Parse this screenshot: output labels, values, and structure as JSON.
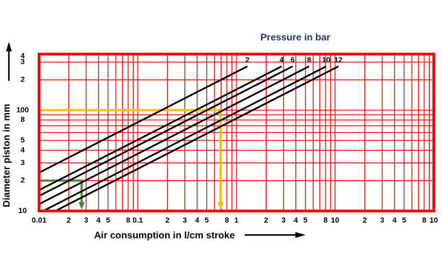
{
  "title": "Pressure in bar",
  "x_axis": {
    "label": "Air consumption in l/cm stroke",
    "scale": "log",
    "min": 0.01,
    "max": 100,
    "ticks": [
      {
        "v": 0.01,
        "t": "0.01"
      },
      {
        "v": 0.02,
        "t": "2"
      },
      {
        "v": 0.03,
        "t": "3"
      },
      {
        "v": 0.04,
        "t": "4"
      },
      {
        "v": 0.05,
        "t": "5"
      },
      {
        "v": 0.08,
        "t": "8"
      },
      {
        "v": 0.1,
        "t": "0.1"
      },
      {
        "v": 0.2,
        "t": "2"
      },
      {
        "v": 0.3,
        "t": "3"
      },
      {
        "v": 0.4,
        "t": "4"
      },
      {
        "v": 0.5,
        "t": "5"
      },
      {
        "v": 0.8,
        "t": "8"
      },
      {
        "v": 1,
        "t": "1"
      },
      {
        "v": 2,
        "t": "2"
      },
      {
        "v": 3,
        "t": "3"
      },
      {
        "v": 4,
        "t": "4"
      },
      {
        "v": 5,
        "t": "5"
      },
      {
        "v": 8,
        "t": "8"
      },
      {
        "v": 10,
        "t": "10"
      },
      {
        "v": 20,
        "t": "2"
      },
      {
        "v": 30,
        "t": "3"
      },
      {
        "v": 40,
        "t": "4"
      },
      {
        "v": 50,
        "t": "5"
      },
      {
        "v": 80,
        "t": "8"
      },
      {
        "v": 100,
        "t": "10"
      }
    ]
  },
  "y_axis": {
    "label": "Diameter piston in mm",
    "scale": "log",
    "min": 10,
    "max": 360,
    "ticks": [
      {
        "v": 10,
        "t": "10"
      },
      {
        "v": 20,
        "t": "2"
      },
      {
        "v": 30,
        "t": "3"
      },
      {
        "v": 40,
        "t": "4"
      },
      {
        "v": 50,
        "t": "5"
      },
      {
        "v": 80,
        "t": "8"
      },
      {
        "v": 100,
        "t": "100"
      },
      {
        "v": 200,
        "t": "2"
      },
      {
        "v": 300,
        "t": "3"
      },
      {
        "v": 400,
        "t": "4"
      }
    ]
  },
  "colors": {
    "grid": "#f20d0d",
    "border": "#fb0000",
    "pressure_line": "#000000",
    "label_navy": "#17365d",
    "trace_yellow": "#ffc000",
    "trace_green": "#538135",
    "text": "#000000"
  },
  "chart_data": {
    "type": "line",
    "title": "Pressure in bar",
    "xlabel": "Air consumption in l/cm stroke",
    "ylabel": "Diameter piston in mm",
    "x_scale": "log",
    "y_scale": "log",
    "xlim": [
      0.01,
      100
    ],
    "ylim": [
      10,
      360
    ],
    "grid": "log-log red grid, mantissas 1-9 each decade",
    "pressure_values_bar": [
      2,
      4,
      6,
      8,
      10,
      12
    ],
    "series": [
      {
        "name": "2",
        "pressure_bar": 2,
        "points": [
          [
            0.01,
            24.0
          ],
          [
            1.29,
            272
          ]
        ]
      },
      {
        "name": "4",
        "pressure_bar": 4,
        "points": [
          [
            0.01,
            16.1
          ],
          [
            2.87,
            272
          ]
        ]
      },
      {
        "name": "6",
        "pressure_bar": 6,
        "points": [
          [
            0.01,
            14.1
          ],
          [
            3.71,
            272
          ]
        ]
      },
      {
        "name": "8",
        "pressure_bar": 8,
        "points": [
          [
            0.01,
            11.7
          ],
          [
            5.45,
            272
          ]
        ]
      },
      {
        "name": "10",
        "pressure_bar": 10,
        "points": [
          [
            0.011,
            10
          ],
          [
            8.13,
            272
          ]
        ]
      },
      {
        "name": "12",
        "pressure_bar": 12,
        "points": [
          [
            0.0146,
            10
          ],
          [
            10.8,
            272
          ]
        ]
      }
    ],
    "example_traces": [
      {
        "name": "yellow-example",
        "diameter_mm": 100,
        "consumption_l_per_cm": 0.69,
        "color": "#ffc000"
      },
      {
        "name": "green-example",
        "diameter_mm": 20,
        "consumption_l_per_cm": 0.027,
        "color": "#538135"
      }
    ]
  }
}
